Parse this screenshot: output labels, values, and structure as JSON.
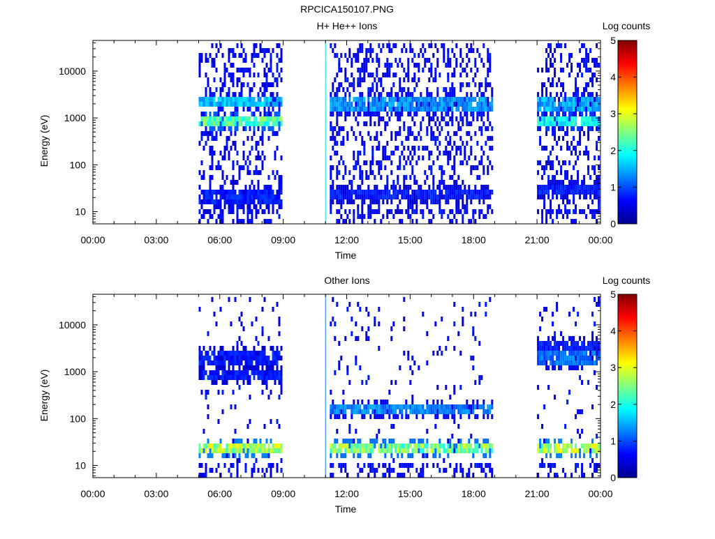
{
  "page_title": "RPCICA150107.PNG",
  "chart_data": [
    {
      "type": "heatmap",
      "title": "H+ He++ Ions",
      "xlabel": "Time",
      "ylabel": "Energy (eV)",
      "x_ticks": [
        "00:00",
        "03:00",
        "06:00",
        "09:00",
        "12:00",
        "15:00",
        "18:00",
        "21:00",
        "00:00"
      ],
      "y_ticks": [
        "10",
        "100",
        "1000",
        "10000"
      ],
      "y_scale": "log",
      "ylim": [
        5.5,
        45000
      ],
      "xlim_hours": [
        0,
        24
      ],
      "colorbar": {
        "label": "Log counts",
        "ticks": [
          "0",
          "1",
          "2",
          "3",
          "4",
          "5"
        ],
        "range": [
          0,
          5
        ]
      },
      "marker_line_hour": 11.0,
      "data_intervals": [
        {
          "start_hour": 5.0,
          "end_hour": 8.9,
          "bands": [
            {
              "energy_ev": 2100,
              "log_counts": 1.6
            },
            {
              "energy_ev": 900,
              "log_counts": 2.4
            },
            {
              "energy_ev": 20,
              "log_counts": 0.8
            }
          ]
        },
        {
          "start_hour": 11.2,
          "end_hour": 18.9,
          "bands": [
            {
              "energy_ev": 2000,
              "log_counts": 1.4
            },
            {
              "energy_ev": 25,
              "log_counts": 0.8
            }
          ]
        },
        {
          "start_hour": 21.0,
          "end_hour": 23.9,
          "bands": [
            {
              "energy_ev": 2000,
              "log_counts": 1.5
            },
            {
              "energy_ev": 900,
              "log_counts": 2.0
            },
            {
              "energy_ev": 30,
              "log_counts": 0.8
            }
          ]
        }
      ]
    },
    {
      "type": "heatmap",
      "title": "Other Ions",
      "xlabel": "Time",
      "ylabel": "Energy (eV)",
      "x_ticks": [
        "00:00",
        "03:00",
        "06:00",
        "09:00",
        "12:00",
        "15:00",
        "18:00",
        "21:00",
        "00:00"
      ],
      "y_ticks": [
        "10",
        "100",
        "1000",
        "10000"
      ],
      "y_scale": "log",
      "ylim": [
        5.5,
        45000
      ],
      "xlim_hours": [
        0,
        24
      ],
      "colorbar": {
        "label": "Log counts",
        "ticks": [
          "0",
          "1",
          "2",
          "3",
          "4",
          "5"
        ],
        "range": [
          0,
          5
        ]
      },
      "marker_line_hour": 11.0,
      "data_intervals": [
        {
          "start_hour": 5.0,
          "end_hour": 8.9,
          "bands": [
            {
              "energy_ev": 25,
              "log_counts": 2.8
            },
            {
              "energy_ev": 2000,
              "log_counts": 0.8
            },
            {
              "energy_ev": 900,
              "log_counts": 0.8
            }
          ]
        },
        {
          "start_hour": 11.2,
          "end_hour": 18.9,
          "bands": [
            {
              "energy_ev": 25,
              "log_counts": 2.6
            },
            {
              "energy_ev": 150,
              "log_counts": 1.3
            }
          ]
        },
        {
          "start_hour": 21.0,
          "end_hour": 23.9,
          "bands": [
            {
              "energy_ev": 25,
              "log_counts": 2.8
            },
            {
              "energy_ev": 2000,
              "log_counts": 1.2
            },
            {
              "energy_ev": 3800,
              "log_counts": 0.8
            }
          ]
        }
      ]
    }
  ]
}
